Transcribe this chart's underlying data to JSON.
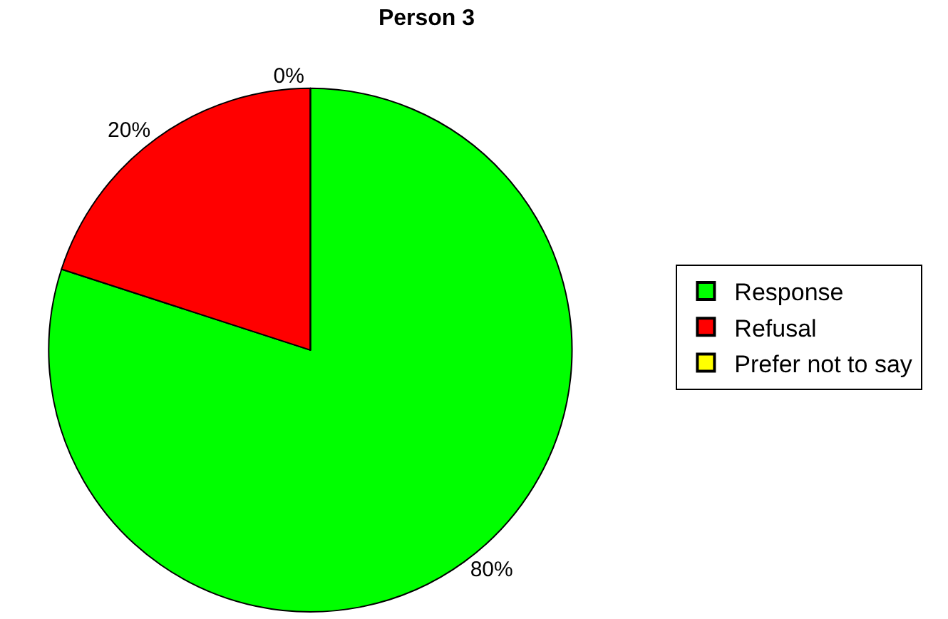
{
  "chart_data": {
    "type": "pie",
    "title": "Person 3",
    "categories": [
      "Response",
      "Refusal",
      "Prefer not to say"
    ],
    "values": [
      80,
      20,
      0
    ],
    "colors": [
      "#00ff00",
      "#ff0000",
      "#ffff00"
    ],
    "value_labels": [
      "80%",
      "20%",
      "0%"
    ],
    "legend": "right"
  }
}
